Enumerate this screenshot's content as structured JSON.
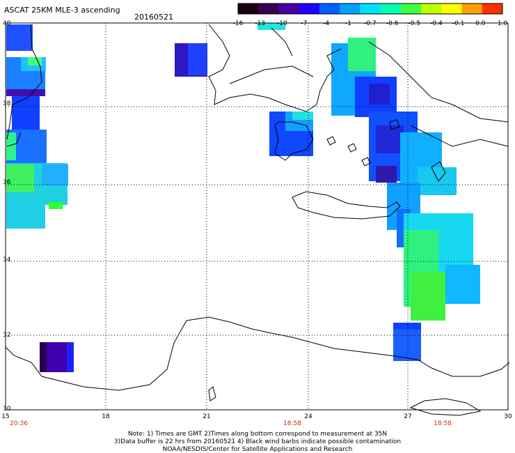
{
  "header": {
    "title": "ASCAT 25KM MLE-3 ascending",
    "date": "20160521"
  },
  "colorbar": {
    "labels": [
      "-16",
      "-13",
      "-10",
      "-7",
      "-4",
      "-1",
      "-0.7",
      "-0.6",
      "-0.5",
      "-0.4",
      "-0.1",
      "0.0",
      "1.0"
    ],
    "colors": [
      "#1a0010",
      "#3a0050",
      "#4a00a0",
      "#2000ff",
      "#0060ff",
      "#00a0ff",
      "#00e0ff",
      "#00ffb0",
      "#40ff40",
      "#c0ff00",
      "#ffff00",
      "#ffa000",
      "#ff3000"
    ]
  },
  "axes": {
    "lat_labels": [
      "40",
      "38",
      "36",
      "34",
      "32",
      "30"
    ],
    "lon_labels": [
      "15",
      "18",
      "21",
      "24",
      "27",
      "30"
    ],
    "time_labels": [
      "20:36",
      "18:58",
      "18:58"
    ]
  },
  "footer": {
    "note1": "Note: 1) Times are GMT 2)Times along bottom correspond to measurement at 35N",
    "note2": "3)Data buffer is 22 hrs from 20160521 4) Black wind barbs indicate possible contamination",
    "note3": "NOAA/NESDIS/Center for Satellite Applications and Research"
  }
}
